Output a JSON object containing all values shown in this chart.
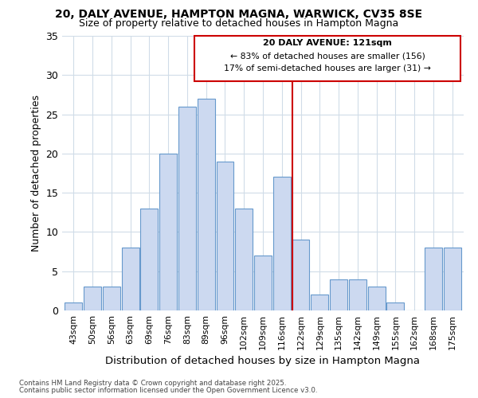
{
  "title1": "20, DALY AVENUE, HAMPTON MAGNA, WARWICK, CV35 8SE",
  "title2": "Size of property relative to detached houses in Hampton Magna",
  "xlabel": "Distribution of detached houses by size in Hampton Magna",
  "ylabel": "Number of detached properties",
  "categories": [
    "43sqm",
    "50sqm",
    "56sqm",
    "63sqm",
    "69sqm",
    "76sqm",
    "83sqm",
    "89sqm",
    "96sqm",
    "102sqm",
    "109sqm",
    "116sqm",
    "122sqm",
    "129sqm",
    "135sqm",
    "142sqm",
    "149sqm",
    "155sqm",
    "162sqm",
    "168sqm",
    "175sqm"
  ],
  "values": [
    1,
    3,
    3,
    8,
    13,
    20,
    26,
    27,
    19,
    13,
    7,
    17,
    9,
    2,
    4,
    4,
    3,
    1,
    0,
    8,
    8
  ],
  "bar_color": "#ccd9f0",
  "bar_edge_color": "#6699cc",
  "bg_color": "#ffffff",
  "grid_color": "#d0dce8",
  "vline_color": "#cc0000",
  "annotation_title": "20 DALY AVENUE: 121sqm",
  "annotation_line1": "← 83% of detached houses are smaller (156)",
  "annotation_line2": "17% of semi-detached houses are larger (31) →",
  "annotation_box_color": "#cc0000",
  "footnote1": "Contains HM Land Registry data © Crown copyright and database right 2025.",
  "footnote2": "Contains public sector information licensed under the Open Government Licence v3.0.",
  "ylim": [
    0,
    35
  ],
  "yticks": [
    0,
    5,
    10,
    15,
    20,
    25,
    30,
    35
  ]
}
